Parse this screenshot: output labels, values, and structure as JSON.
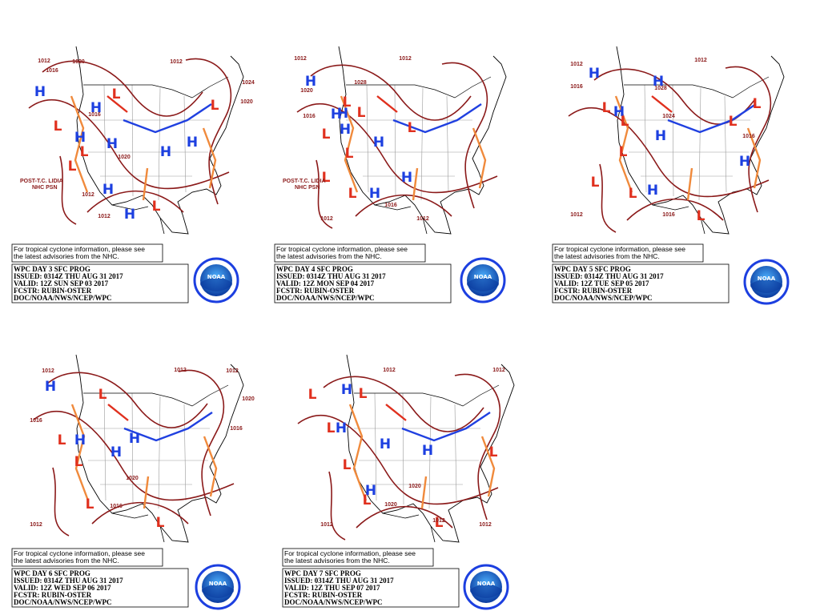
{
  "panels": [
    {
      "notice": [
        "For tropical cyclone information, please see",
        "the latest advisories from the NHC."
      ],
      "product": [
        "WPC DAY 3 SFC PROG",
        "ISSUED: 0314Z THU AUG 31 2017",
        "VALID: 12Z SUN SEP 03 2017",
        "FCSTR: RUBIN-OSTER",
        "DOC/NOAA/NWS/NCEP/WPC"
      ],
      "logo": "NOAA",
      "centers": [
        "H",
        "H",
        "H",
        "H",
        "H",
        "H",
        "H",
        "H",
        "L",
        "L",
        "L",
        "L",
        "L",
        "L"
      ],
      "isobars": [
        "1012",
        "1016",
        "1020",
        "1012",
        "1024",
        "1020",
        "1016",
        "1020",
        "1012",
        "1012"
      ],
      "notes": [
        "POST-T.C. LIDIA",
        "NHC PSN"
      ]
    },
    {
      "notice": [
        "For tropical cyclone information, please see",
        "the latest advisories from the NHC."
      ],
      "product": [
        "WPC DAY 4 SFC PROG",
        "ISSUED: 0314Z THU AUG 31 2017",
        "VALID: 12Z MON SEP 04 2017",
        "FCSTR: RUBIN-OSTER",
        "DOC/NOAA/NWS/NCEP/WPC"
      ],
      "logo": "NOAA",
      "centers": [
        "H",
        "H",
        "H",
        "H",
        "H",
        "H",
        "H",
        "L",
        "L",
        "L",
        "L",
        "L",
        "L",
        "L"
      ],
      "isobars": [
        "1012",
        "1020",
        "1016",
        "1028",
        "1012",
        "1012",
        "1016",
        "1012"
      ],
      "notes": [
        "POST-T.C. LIDIA",
        "NHC PSN"
      ]
    },
    {
      "notice": [
        "For tropical cyclone information, please see",
        "the latest advisories from the NHC."
      ],
      "product": [
        "WPC DAY 5 SFC PROG",
        "ISSUED: 0314Z THU AUG 31 2017",
        "VALID: 12Z TUE SEP 05 2017",
        "FCSTR: RUBIN-OSTER",
        "DOC/NOAA/NWS/NCEP/WPC"
      ],
      "logo": "NOAA",
      "centers": [
        "H",
        "H",
        "H",
        "H",
        "H",
        "H",
        "L",
        "L",
        "L",
        "L",
        "L",
        "L",
        "L",
        "L"
      ],
      "isobars": [
        "1012",
        "1016",
        "1028",
        "1024",
        "1012",
        "1016",
        "1012",
        "1016"
      ],
      "notes": []
    },
    {
      "notice": [
        "For tropical cyclone information, please see",
        "the latest advisories from the NHC."
      ],
      "product": [
        "WPC DAY 6 SFC PROG",
        "ISSUED: 0314Z THU AUG 31 2017",
        "VALID: 12Z WED SEP 06 2017",
        "FCSTR: RUBIN-OSTER",
        "DOC/NOAA/NWS/NCEP/WPC"
      ],
      "logo": "NOAA",
      "centers": [
        "H",
        "H",
        "H",
        "H",
        "L",
        "L",
        "L",
        "L",
        "L"
      ],
      "isobars": [
        "1012",
        "1016",
        "1020",
        "1016",
        "1020",
        "1016",
        "1012",
        "1012",
        "1012"
      ],
      "notes": []
    },
    {
      "notice": [
        "For tropical cyclone information, please see",
        "the latest advisories from the NHC."
      ],
      "product": [
        "WPC DAY 7 SFC PROG",
        "ISSUED: 0314Z THU AUG 31 2017",
        "VALID: 12Z THU SEP 07 2017",
        "FCSTR: RUBIN-OSTER",
        "DOC/NOAA/NWS/NCEP/WPC"
      ],
      "logo": "NOAA",
      "centers": [
        "H",
        "H",
        "H",
        "H",
        "H",
        "L",
        "L",
        "L",
        "L",
        "L",
        "L",
        "L"
      ],
      "isobars": [
        "1012",
        "1012",
        "1020",
        "1020",
        "1012",
        "1012",
        "1012"
      ],
      "notes": []
    }
  ]
}
